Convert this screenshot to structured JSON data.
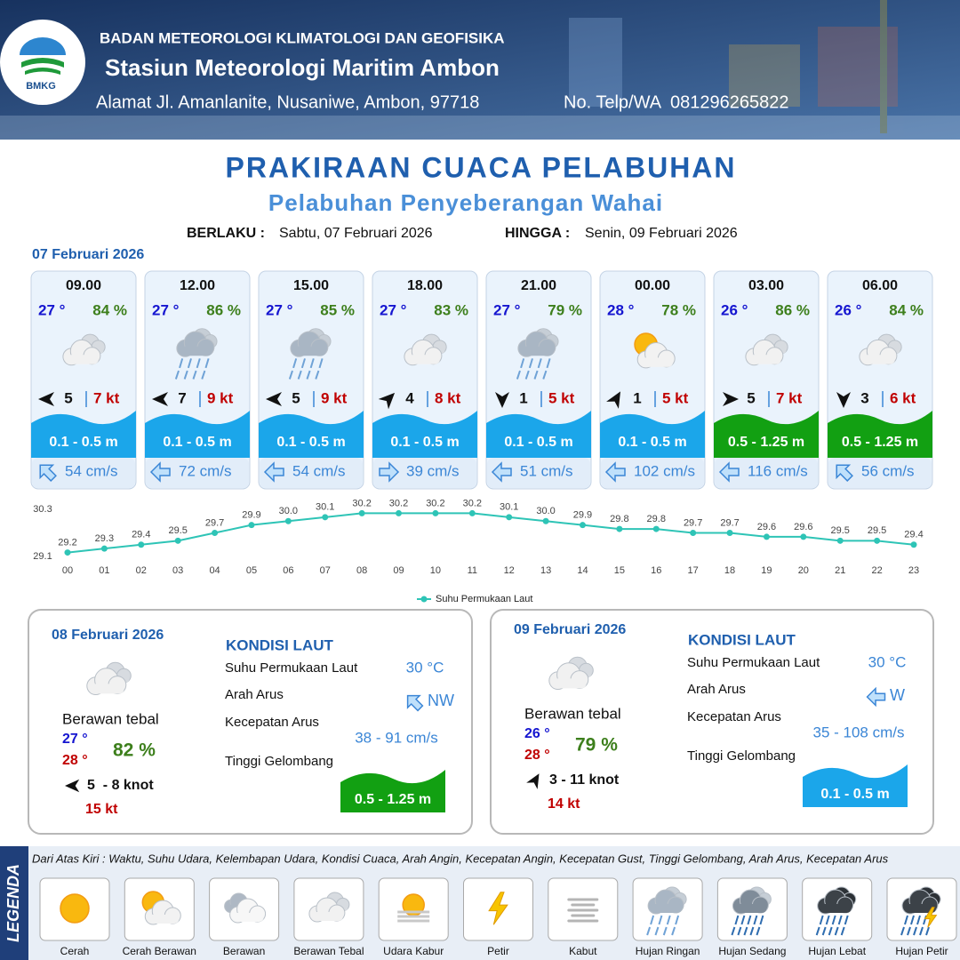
{
  "header": {
    "logo": "BMKG",
    "agency": "BADAN METEOROLOGI KLIMATOLOGI DAN GEOFISIKA",
    "station": "Stasiun Meteorologi Maritim Ambon",
    "address": "Alamat Jl. Amanlanite, Nusaniwe, Ambon, 97718",
    "phone": "No. Telp/WA  081296265822"
  },
  "title": "PRAKIRAAN CUACA PELABUHAN",
  "subtitle": "Pelabuhan Penyeberangan Wahai",
  "validity": {
    "from_label": "BERLAKU :",
    "from": "Sabtu, 07 Februari 2026",
    "to_label": "HINGGA :",
    "to": "Senin, 09 Februari 2026"
  },
  "day1": {
    "date": "07 Februari 2026",
    "slots": [
      {
        "time": "09.00",
        "temp": "27 °",
        "humidity": "84 %",
        "icon": "berawan_tebal",
        "wind_deg": 270,
        "wind": "5",
        "gust": "7 kt",
        "wave": "0.1 - 0.5 m",
        "wave_color": "#1ba6ea",
        "current_deg": 315,
        "current": "54 cm/s"
      },
      {
        "time": "12.00",
        "temp": "27 °",
        "humidity": "86 %",
        "icon": "hujan_ringan",
        "wind_deg": 270,
        "wind": "7",
        "gust": "9 kt",
        "wave": "0.1 - 0.5 m",
        "wave_color": "#1ba6ea",
        "current_deg": 270,
        "current": "72 cm/s"
      },
      {
        "time": "15.00",
        "temp": "27 °",
        "humidity": "85 %",
        "icon": "hujan_ringan",
        "wind_deg": 270,
        "wind": "5",
        "gust": "9 kt",
        "wave": "0.1 - 0.5 m",
        "wave_color": "#1ba6ea",
        "current_deg": 270,
        "current": "54 cm/s"
      },
      {
        "time": "18.00",
        "temp": "27 °",
        "humidity": "83 %",
        "icon": "berawan_tebal",
        "wind_deg": 45,
        "wind": "4",
        "gust": "8 kt",
        "wave": "0.1 - 0.5 m",
        "wave_color": "#1ba6ea",
        "current_deg": 90,
        "current": "39 cm/s"
      },
      {
        "time": "21.00",
        "temp": "27 °",
        "humidity": "79 %",
        "icon": "hujan_ringan",
        "wind_deg": 180,
        "wind": "1",
        "gust": "5 kt",
        "wave": "0.1 - 0.5 m",
        "wave_color": "#1ba6ea",
        "current_deg": 270,
        "current": "51 cm/s"
      },
      {
        "time": "00.00",
        "temp": "28 °",
        "humidity": "78 %",
        "icon": "cerah_berawan",
        "wind_deg": 30,
        "wind": "1",
        "gust": "5 kt",
        "wave": "0.1 - 0.5 m",
        "wave_color": "#1ba6ea",
        "current_deg": 270,
        "current": "102 cm/s"
      },
      {
        "time": "03.00",
        "temp": "26 °",
        "humidity": "86 %",
        "icon": "berawan_tebal",
        "wind_deg": 90,
        "wind": "5",
        "gust": "7 kt",
        "wave": "0.5 - 1.25 m",
        "wave_color": "#12a012",
        "current_deg": 270,
        "current": "116 cm/s"
      },
      {
        "time": "06.00",
        "temp": "26 °",
        "humidity": "84 %",
        "icon": "berawan_tebal",
        "wind_deg": 180,
        "wind": "3",
        "gust": "6 kt",
        "wave": "0.5 - 1.25 m",
        "wave_color": "#12a012",
        "current_deg": 315,
        "current": "56 cm/s"
      }
    ]
  },
  "chart_data": {
    "type": "line",
    "x": [
      "00",
      "01",
      "02",
      "03",
      "04",
      "05",
      "06",
      "07",
      "08",
      "09",
      "10",
      "11",
      "12",
      "13",
      "14",
      "15",
      "16",
      "17",
      "18",
      "19",
      "20",
      "21",
      "22",
      "23"
    ],
    "series": [
      {
        "name": "Suhu Permukaan Laut",
        "color": "#2ec4b6",
        "values": [
          29.2,
          29.3,
          29.4,
          29.5,
          29.7,
          29.9,
          30.0,
          30.1,
          30.2,
          30.2,
          30.2,
          30.2,
          30.1,
          30.0,
          29.9,
          29.8,
          29.8,
          29.7,
          29.7,
          29.6,
          29.6,
          29.5,
          29.5,
          29.4
        ],
        "value_labels": [
          "29.2",
          "29.3",
          "29.4",
          "29.5",
          "29.7",
          "29.9",
          "30.0",
          "30.1",
          "30.2",
          "30.2",
          "30.2",
          "30.2",
          "30.1",
          "30.0",
          "29.9",
          "29.8",
          "29.8",
          "29.7",
          "29.7",
          "29.6",
          "29.6",
          "29.5",
          "29.5",
          "29.4"
        ]
      }
    ],
    "ylim": [
      29.1,
      30.3
    ],
    "yticks": [
      29.1,
      30.3
    ],
    "grid": false
  },
  "days": [
    {
      "date": "08 Februari 2026",
      "icon": "berawan_tebal",
      "condition": "Berawan tebal",
      "tmin": "27 °",
      "tmax": "28 °",
      "humidity": "82 %",
      "wind_deg": 270,
      "wind": "5  - 8 knot",
      "gust": "15 kt",
      "sea_title": "KONDISI LAUT",
      "sst_label": "Suhu Permukaan Laut",
      "sst": "30 °C",
      "current_dir_label": "Arah Arus",
      "current_deg": 315,
      "current_dir": "NW",
      "current_speed_label": "Kecepatan Arus",
      "current_speed": "38 - 91 cm/s",
      "wave_label": "Tinggi Gelombang",
      "wave": "0.5 - 1.25 m",
      "wave_color": "#12a012"
    },
    {
      "date": "09 Februari 2026",
      "icon": "berawan_tebal",
      "condition": "Berawan tebal",
      "tmin": "26 °",
      "tmax": "28 °",
      "humidity": "79 %",
      "wind_deg": 30,
      "wind": "3 - 11 knot",
      "gust": "14 kt",
      "sea_title": "KONDISI LAUT",
      "sst_label": "Suhu Permukaan Laut",
      "sst": "30 °C",
      "current_dir_label": "Arah Arus",
      "current_deg": 270,
      "current_dir": "W",
      "current_speed_label": "Kecepatan Arus",
      "current_speed": "35 - 108 cm/s",
      "wave_label": "Tinggi Gelombang",
      "wave": "0.1 - 0.5 m",
      "wave_color": "#1ba6ea"
    }
  ],
  "legend": {
    "title": "LEGENDA",
    "description": "Dari Atas Kiri : Waktu, Suhu Udara, Kelembapan Udara, Kondisi Cuaca, Arah Angin, Kecepatan Angin, Kecepatan Gust, Tinggi Gelombang, Arah Arus, Kecepatan Arus",
    "items": [
      {
        "icon": "cerah",
        "label": "Cerah"
      },
      {
        "icon": "cerah_berawan",
        "label": "Cerah Berawan"
      },
      {
        "icon": "berawan",
        "label": "Berawan"
      },
      {
        "icon": "berawan_tebal",
        "label": "Berawan Tebal"
      },
      {
        "icon": "udara_kabur",
        "label": "Udara Kabur"
      },
      {
        "icon": "petir",
        "label": "Petir"
      },
      {
        "icon": "kabut",
        "label": "Kabut"
      },
      {
        "icon": "hujan_ringan",
        "label": "Hujan Ringan"
      },
      {
        "icon": "hujan_sedang",
        "label": "Hujan Sedang"
      },
      {
        "icon": "hujan_lebat",
        "label": "Hujan Lebat"
      },
      {
        "icon": "hujan_petir",
        "label": "Hujan Petir"
      }
    ]
  }
}
